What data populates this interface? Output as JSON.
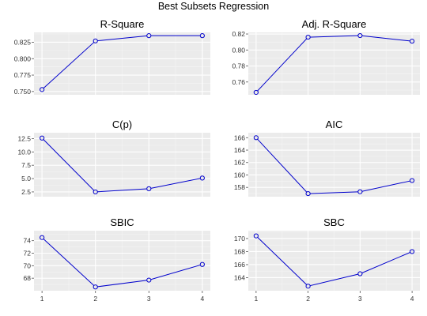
{
  "figure_title": "Best Subsets Regression",
  "chart_data": [
    {
      "type": "line",
      "title": "R-Square",
      "x": [
        1,
        2,
        3,
        4
      ],
      "values": [
        0.753,
        0.827,
        0.835,
        0.835
      ],
      "ylim": [
        0.745,
        0.84
      ],
      "yticks": [
        0.75,
        0.775,
        0.8,
        0.825
      ],
      "ytick_labels": [
        "0.750",
        "0.775",
        "0.800",
        "0.825"
      ],
      "xticks": [],
      "xtick_labels": [],
      "grid": true
    },
    {
      "type": "line",
      "title": "Adj. R-Square",
      "x": [
        1,
        2,
        3,
        4
      ],
      "values": [
        0.747,
        0.816,
        0.818,
        0.811
      ],
      "ylim": [
        0.744,
        0.822
      ],
      "yticks": [
        0.76,
        0.78,
        0.8,
        0.82
      ],
      "ytick_labels": [
        "0.76",
        "0.78",
        "0.80",
        "0.82"
      ],
      "xticks": [],
      "xtick_labels": [],
      "grid": true
    },
    {
      "type": "line",
      "title": "C(p)",
      "x": [
        1,
        2,
        3,
        4
      ],
      "values": [
        12.6,
        2.5,
        3.1,
        5.1
      ],
      "ylim": [
        1.6,
        13.6
      ],
      "yticks": [
        2.5,
        5.0,
        7.5,
        10.0,
        12.5
      ],
      "ytick_labels": [
        "2.5",
        "5.0",
        "7.5",
        "10.0",
        "12.5"
      ],
      "xticks": [],
      "xtick_labels": [],
      "grid": true
    },
    {
      "type": "line",
      "title": "AIC",
      "x": [
        1,
        2,
        3,
        4
      ],
      "values": [
        166.0,
        157.0,
        157.3,
        159.1
      ],
      "ylim": [
        156.5,
        166.8
      ],
      "yticks": [
        158,
        160,
        162,
        164,
        166
      ],
      "ytick_labels": [
        "158",
        "160",
        "162",
        "164",
        "166"
      ],
      "xticks": [],
      "xtick_labels": [],
      "grid": true
    },
    {
      "type": "line",
      "title": "SBIC",
      "x": [
        1,
        2,
        3,
        4
      ],
      "values": [
        74.5,
        66.6,
        67.7,
        70.2
      ],
      "ylim": [
        66.0,
        75.6
      ],
      "yticks": [
        68,
        70,
        72,
        74
      ],
      "ytick_labels": [
        "68",
        "70",
        "72",
        "74"
      ],
      "xticks": [
        1,
        2,
        3,
        4
      ],
      "xtick_labels": [
        "1",
        "2",
        "3",
        "4"
      ],
      "grid": true
    },
    {
      "type": "line",
      "title": "SBC",
      "x": [
        1,
        2,
        3,
        4
      ],
      "values": [
        170.4,
        162.7,
        164.6,
        168.0
      ],
      "ylim": [
        162.0,
        171.2
      ],
      "yticks": [
        164,
        166,
        168,
        170
      ],
      "ytick_labels": [
        "164",
        "166",
        "168",
        "170"
      ],
      "xticks": [
        1,
        2,
        3,
        4
      ],
      "xtick_labels": [
        "1",
        "2",
        "3",
        "4"
      ],
      "grid": true
    }
  ],
  "colors": {
    "panel_background": "#ebebeb",
    "grid_major": "#ffffff",
    "grid_minor": "#f5f5f5",
    "line": "#0000cc",
    "point_stroke": "#0000cc",
    "point_fill": "#ebebeb"
  }
}
